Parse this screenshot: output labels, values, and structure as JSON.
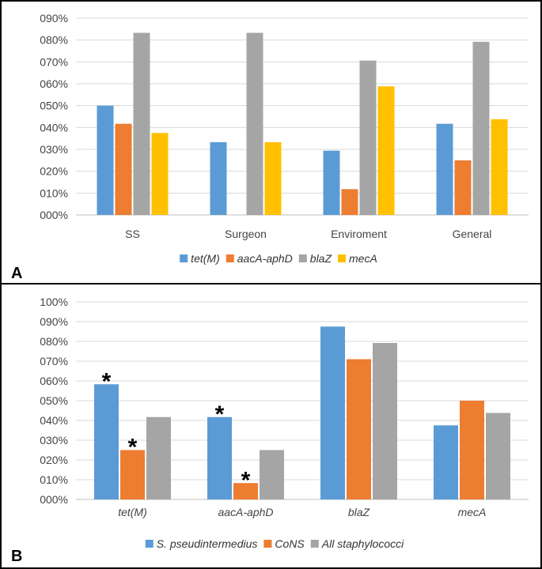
{
  "chart_data": [
    {
      "panel_label": "A",
      "type": "bar",
      "title": "",
      "xlabel": "",
      "ylabel": "",
      "ylim": [
        0,
        90
      ],
      "yticks": [
        {
          "value": 0,
          "label": "000%"
        },
        {
          "value": 10,
          "label": "010%"
        },
        {
          "value": 20,
          "label": "020%"
        },
        {
          "value": 30,
          "label": "030%"
        },
        {
          "value": 40,
          "label": "040%"
        },
        {
          "value": 50,
          "label": "050%"
        },
        {
          "value": 60,
          "label": "060%"
        },
        {
          "value": 70,
          "label": "070%"
        },
        {
          "value": 80,
          "label": "080%"
        },
        {
          "value": 90,
          "label": "090%"
        }
      ],
      "categories": [
        "SS",
        "Surgeon",
        "Enviroment",
        "General"
      ],
      "category_italic": false,
      "series": [
        {
          "name": "tet(M)",
          "color": "#5B9BD5",
          "values": [
            50,
            33.3,
            29.4,
            41.7
          ]
        },
        {
          "name": "aacA-aphD",
          "color": "#ED7D31",
          "values": [
            41.7,
            0,
            11.8,
            25
          ]
        },
        {
          "name": "blaZ",
          "color": "#A5A5A5",
          "values": [
            83.3,
            83.3,
            70.6,
            79.2
          ]
        },
        {
          "name": "mecA",
          "color": "#FFC000",
          "values": [
            37.5,
            33.3,
            58.8,
            43.8
          ]
        }
      ],
      "legend_italic": true,
      "legend_position": "bottom",
      "annotations": []
    },
    {
      "panel_label": "B",
      "type": "bar",
      "title": "",
      "xlabel": "",
      "ylabel": "",
      "ylim": [
        0,
        100
      ],
      "yticks": [
        {
          "value": 0,
          "label": "000%"
        },
        {
          "value": 10,
          "label": "010%"
        },
        {
          "value": 20,
          "label": "020%"
        },
        {
          "value": 30,
          "label": "030%"
        },
        {
          "value": 40,
          "label": "040%"
        },
        {
          "value": 50,
          "label": "050%"
        },
        {
          "value": 60,
          "label": "060%"
        },
        {
          "value": 70,
          "label": "070%"
        },
        {
          "value": 80,
          "label": "080%"
        },
        {
          "value": 90,
          "label": "090%"
        },
        {
          "value": 100,
          "label": "100%"
        }
      ],
      "categories": [
        "tet(M)",
        "aacA-aphD",
        "blaZ",
        "mecA"
      ],
      "category_italic": true,
      "series": [
        {
          "name": "S. pseudintermedius",
          "color": "#5B9BD5",
          "values": [
            58.3,
            41.7,
            87.5,
            37.5
          ]
        },
        {
          "name": "CoNS",
          "color": "#ED7D31",
          "values": [
            25,
            8.3,
            71,
            50
          ]
        },
        {
          "name": "All staphylococci",
          "color": "#A5A5A5",
          "values": [
            41.7,
            25,
            79.2,
            43.8
          ]
        }
      ],
      "legend_italic": true,
      "legend_position": "bottom",
      "annotations": [
        {
          "text": "*",
          "category": 0,
          "series": 0
        },
        {
          "text": "*",
          "category": 0,
          "series": 1
        },
        {
          "text": "*",
          "category": 1,
          "series": 0
        },
        {
          "text": "*",
          "category": 1,
          "series": 1
        }
      ]
    }
  ]
}
